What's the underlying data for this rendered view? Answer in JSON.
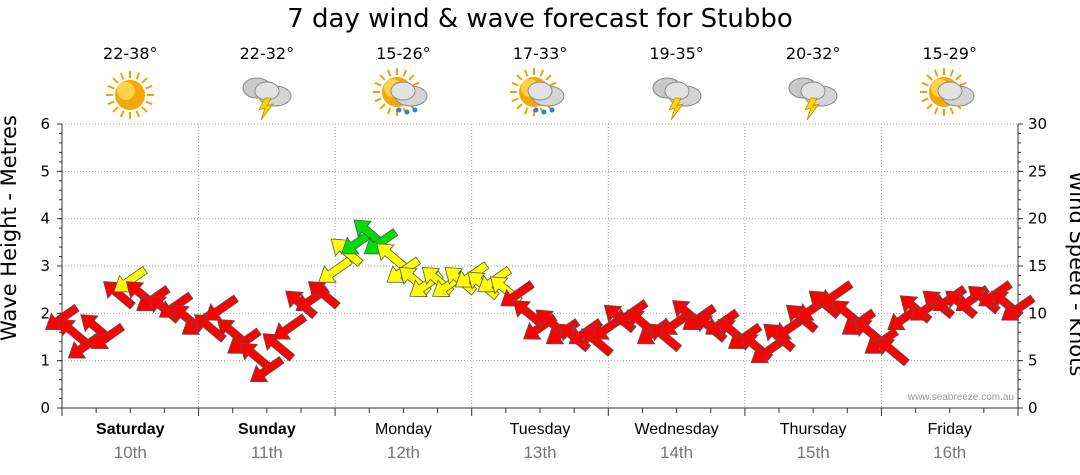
{
  "title": "7 day wind & wave forecast for Stubbo",
  "left_axis_label": "Wave Height - Metres",
  "right_axis_label": "Wind Speed - Knots",
  "watermark": "www.seabreeze.com.au",
  "days": [
    {
      "name": "Saturday",
      "date": "10th",
      "temp": "22-38°",
      "icon": "sunny-icon",
      "bold": true
    },
    {
      "name": "Sunday",
      "date": "11th",
      "temp": "22-32°",
      "icon": "thunderstorm-icon",
      "bold": true
    },
    {
      "name": "Monday",
      "date": "12th",
      "temp": "15-26°",
      "icon": "sun-rain-icon",
      "bold": false
    },
    {
      "name": "Tuesday",
      "date": "13th",
      "temp": "17-33°",
      "icon": "sun-shower-icon",
      "bold": false
    },
    {
      "name": "Wednesday",
      "date": "14th",
      "temp": "19-35°",
      "icon": "thunderstorm-icon",
      "bold": false
    },
    {
      "name": "Thursday",
      "date": "15th",
      "temp": "20-32°",
      "icon": "thunderstorm-icon",
      "bold": false
    },
    {
      "name": "Friday",
      "date": "16th",
      "temp": "15-29°",
      "icon": "partly-cloudy-icon",
      "bold": false
    }
  ],
  "colors": {
    "low": "#ff0000",
    "mid": "#ffff00",
    "high": "#00dd00",
    "axis": "#000000",
    "grid": "#aaaaaa"
  },
  "chart_data": {
    "type": "scatter",
    "left_axis": {
      "ylim": [
        0,
        6
      ],
      "ticks": [
        0,
        1,
        2,
        3,
        4,
        5,
        6
      ]
    },
    "right_axis": {
      "ylim": [
        0,
        30
      ],
      "ticks": [
        0,
        5,
        10,
        15,
        20,
        25,
        30
      ]
    },
    "x_unit": "hours from start",
    "x_range": [
      0,
      168
    ],
    "series": [
      {
        "points": [
          [
            0,
            9.5
          ],
          [
            2,
            8.0
          ],
          [
            4,
            6.5
          ],
          [
            6,
            8.5
          ],
          [
            8,
            7.5
          ],
          [
            10,
            12.0
          ],
          [
            12,
            13.5
          ],
          [
            14,
            12.0
          ],
          [
            16,
            11.5
          ],
          [
            18,
            10.5
          ],
          [
            20,
            10.8
          ],
          [
            22,
            9.5
          ],
          [
            24,
            9.0
          ],
          [
            26,
            8.5
          ],
          [
            28,
            10.5
          ],
          [
            30,
            8.0
          ],
          [
            32,
            7.0
          ],
          [
            34,
            5.5
          ],
          [
            36,
            4.0
          ],
          [
            38,
            6.5
          ],
          [
            40,
            8.5
          ],
          [
            42,
            11.0
          ],
          [
            44,
            11.5
          ],
          [
            46,
            12.0
          ],
          [
            48,
            14.5
          ],
          [
            50,
            16.5
          ],
          [
            52,
            17.5
          ],
          [
            54,
            18.5
          ],
          [
            56,
            17.5
          ],
          [
            58,
            16.0
          ],
          [
            60,
            14.5
          ],
          [
            62,
            13.5
          ],
          [
            64,
            13.0
          ],
          [
            66,
            13.5
          ],
          [
            68,
            13.0
          ],
          [
            70,
            13.5
          ],
          [
            72,
            14.0
          ],
          [
            74,
            13.0
          ],
          [
            76,
            13.5
          ],
          [
            78,
            12.5
          ],
          [
            80,
            12.0
          ],
          [
            82,
            10.0
          ],
          [
            84,
            8.5
          ],
          [
            86,
            9.0
          ],
          [
            88,
            8.0
          ],
          [
            90,
            7.5
          ],
          [
            92,
            8.0
          ],
          [
            94,
            7.0
          ],
          [
            96,
            8.5
          ],
          [
            98,
            9.5
          ],
          [
            100,
            10.0
          ],
          [
            102,
            9.0
          ],
          [
            104,
            8.0
          ],
          [
            106,
            7.5
          ],
          [
            108,
            9.0
          ],
          [
            110,
            10.0
          ],
          [
            112,
            9.5
          ],
          [
            114,
            8.5
          ],
          [
            116,
            9.0
          ],
          [
            118,
            8.0
          ],
          [
            120,
            7.5
          ],
          [
            122,
            6.5
          ],
          [
            124,
            6.0
          ],
          [
            126,
            7.5
          ],
          [
            128,
            8.5
          ],
          [
            130,
            9.5
          ],
          [
            132,
            10.5
          ],
          [
            134,
            11.0
          ],
          [
            136,
            12.0
          ],
          [
            138,
            10.0
          ],
          [
            140,
            9.0
          ],
          [
            142,
            8.0
          ],
          [
            144,
            7.0
          ],
          [
            146,
            6.0
          ],
          [
            148,
            9.5
          ],
          [
            150,
            10.5
          ],
          [
            152,
            10.5
          ],
          [
            154,
            11.0
          ],
          [
            156,
            11.5
          ],
          [
            158,
            11.0
          ],
          [
            160,
            11.5
          ],
          [
            162,
            11.5
          ],
          [
            164,
            12.0
          ],
          [
            166,
            11.0
          ],
          [
            168,
            10.5
          ]
        ]
      }
    ]
  }
}
